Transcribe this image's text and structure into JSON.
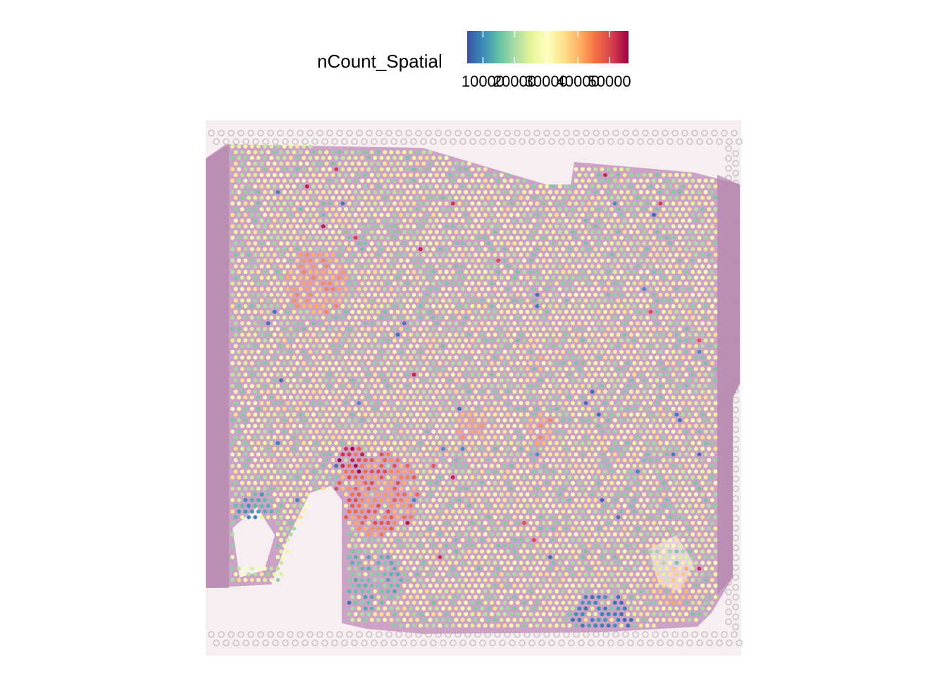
{
  "chart_data": {
    "type": "scatter",
    "subtype": "spatial-feature-plot",
    "feature": "nCount_Spatial",
    "legend": {
      "title": "nCount_Spatial",
      "placement": "top",
      "scale_min": 5000,
      "scale_max": 56000,
      "ticks": [
        10000,
        20000,
        30000,
        40000,
        50000
      ],
      "tick_labels": [
        "10000",
        "20000",
        "30000",
        "40000",
        "50000"
      ],
      "palette": [
        "#3d52a1",
        "#3a8cb8",
        "#66c2a5",
        "#abdda4",
        "#e6f598",
        "#ffffbf",
        "#fee08b",
        "#fdae61",
        "#f46d43",
        "#d53e4f",
        "#9e0142"
      ]
    },
    "background": {
      "tissue_color": "#c79ac1",
      "slide_color": "#f7eef1"
    },
    "grid": false,
    "axes": false,
    "spot_value_range": [
      6000,
      56000
    ],
    "high_count_regions": [
      {
        "region": "lower-left tumor-like patch",
        "approx_value": 45000
      },
      {
        "region": "upper-left patch",
        "approx_value": 40000
      },
      {
        "region": "center patch",
        "approx_value": 40000
      },
      {
        "region": "lower-right edge",
        "approx_value": 38000
      }
    ],
    "low_count_regions": [
      {
        "region": "bottom edge near center-right",
        "approx_value": 9000
      },
      {
        "region": "left notch",
        "approx_value": 12000
      },
      {
        "region": "lower-left dense region",
        "approx_value": 15000
      }
    ]
  }
}
